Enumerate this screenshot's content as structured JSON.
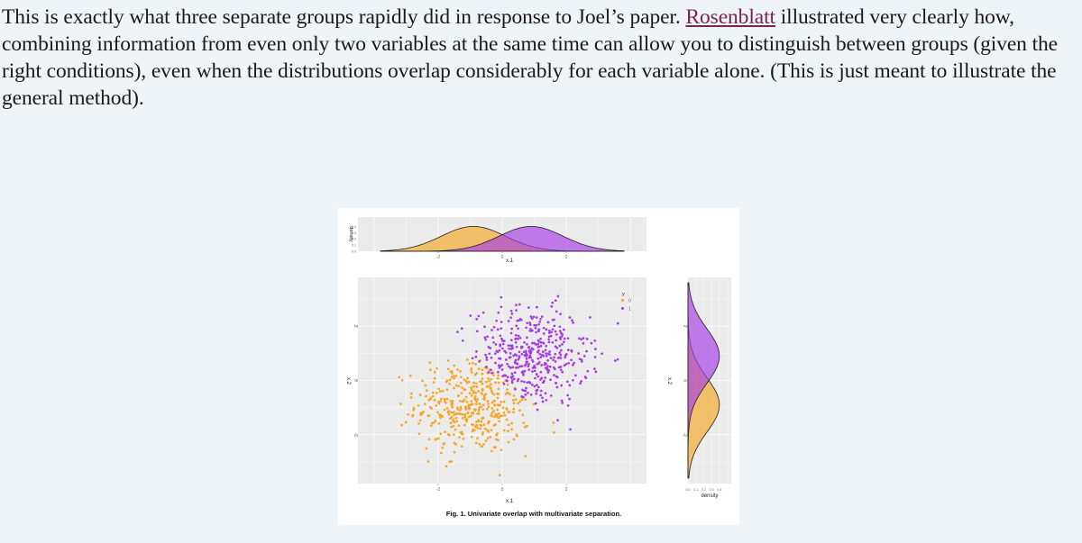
{
  "article": {
    "text_before_link": "This is exactly what three separate groups rapidly did in response to Joel’s paper. ",
    "link_text": "Rosenblatt",
    "text_after_link": " illustrated very clearly how, combining information from even only two variables at the same time can allow you to distinguish between groups (given the right conditions), even when the distributions overlap considerably for each variable alone. (This is just meant to illustrate the general method)."
  },
  "figure": {
    "caption": "Fig. 1. Univariate overlap with multivariate separation."
  },
  "colors": {
    "group_0": "#f5a623",
    "group_1": "#a63be6",
    "panel_bg": "#ebebeb",
    "page_bg": "#eff4f9"
  },
  "chart_data": [
    {
      "type": "area",
      "name": "top-density",
      "xlabel": "x.1",
      "ylabel": "density",
      "x_ticks": [
        "-2",
        "0",
        "2"
      ],
      "y_ticks": [
        "0.0",
        "0.1",
        "0.2",
        "0.3",
        "0.4"
      ],
      "xlim": [
        -4.5,
        4.5
      ],
      "ylim": [
        0,
        0.55
      ],
      "series": [
        {
          "name": "0",
          "color": "#f5a623",
          "mean": -0.9,
          "sd": 1.0
        },
        {
          "name": "1",
          "color": "#a63be6",
          "mean": 0.9,
          "sd": 1.0
        }
      ]
    },
    {
      "type": "scatter",
      "name": "main-scatter",
      "xlabel": "x.1",
      "ylabel": "x.2",
      "x_ticks": [
        "-2",
        "0",
        "2"
      ],
      "y_ticks": [
        "2",
        "0",
        "-2"
      ],
      "xlim": [
        -4.5,
        4.5
      ],
      "ylim": [
        -3.8,
        3.8
      ],
      "legend": {
        "title": "y",
        "position": "top-right",
        "entries": [
          "0",
          "1"
        ]
      },
      "series": [
        {
          "name": "0",
          "color": "#f5a623",
          "x_mean": -0.9,
          "y_mean": -0.9,
          "sd": 0.9,
          "n": 420
        },
        {
          "name": "1",
          "color": "#a63be6",
          "x_mean": 0.9,
          "y_mean": 0.9,
          "sd": 0.9,
          "n": 420
        }
      ]
    },
    {
      "type": "area",
      "name": "side-density",
      "xlabel": "density",
      "ylabel": "x.2",
      "x_ticks": [
        "0.0",
        "0.1",
        "0.2",
        "0.3",
        "0.4"
      ],
      "y_ticks": [
        "2",
        "0",
        "-2"
      ],
      "xlim": [
        0,
        0.55
      ],
      "ylim": [
        -3.8,
        3.8
      ],
      "series": [
        {
          "name": "0",
          "color": "#f5a623",
          "mean": -0.9,
          "sd": 1.0
        },
        {
          "name": "1",
          "color": "#a63be6",
          "mean": 0.9,
          "sd": 1.0
        }
      ]
    }
  ]
}
